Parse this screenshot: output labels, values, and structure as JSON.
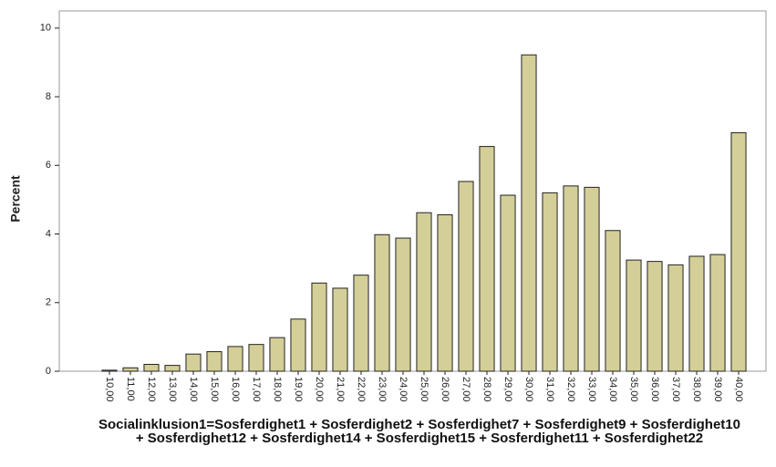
{
  "chart_data": {
    "type": "bar",
    "ylabel": "Percent",
    "xlabel": "Socialinklusion1=Sosferdighet1 + Sosferdighet2  + Sosferdighet7 + Sosferdighet9 + Sosferdighet10 + Sosferdighet12 + Sosferdighet14 + Sosferdighet15 + Sosferdighet11 + Sosferdighet22",
    "categories": [
      "10,00",
      "11,00",
      "12,00",
      "13,00",
      "14,00",
      "15,00",
      "16,00",
      "17,00",
      "18,00",
      "19,00",
      "20,00",
      "21,00",
      "22,00",
      "23,00",
      "24,00",
      "25,00",
      "26,00",
      "27,00",
      "28,00",
      "29,00",
      "30,00",
      "31,00",
      "32,00",
      "33,00",
      "34,00",
      "35,00",
      "36,00",
      "37,00",
      "38,00",
      "39,00",
      "40,00"
    ],
    "values": [
      0.03,
      0.1,
      0.2,
      0.17,
      0.5,
      0.57,
      0.72,
      0.78,
      0.98,
      1.52,
      2.57,
      2.42,
      2.8,
      3.98,
      3.88,
      4.62,
      4.56,
      5.53,
      6.55,
      5.13,
      9.22,
      5.2,
      5.4,
      5.36,
      4.1,
      3.24,
      3.2,
      3.1,
      3.35,
      3.4,
      6.95
    ],
    "color": "#d4cf98",
    "ylim": [
      0,
      10.5
    ],
    "yticks": [
      0,
      2,
      4,
      6,
      8,
      10
    ],
    "grid": false
  }
}
